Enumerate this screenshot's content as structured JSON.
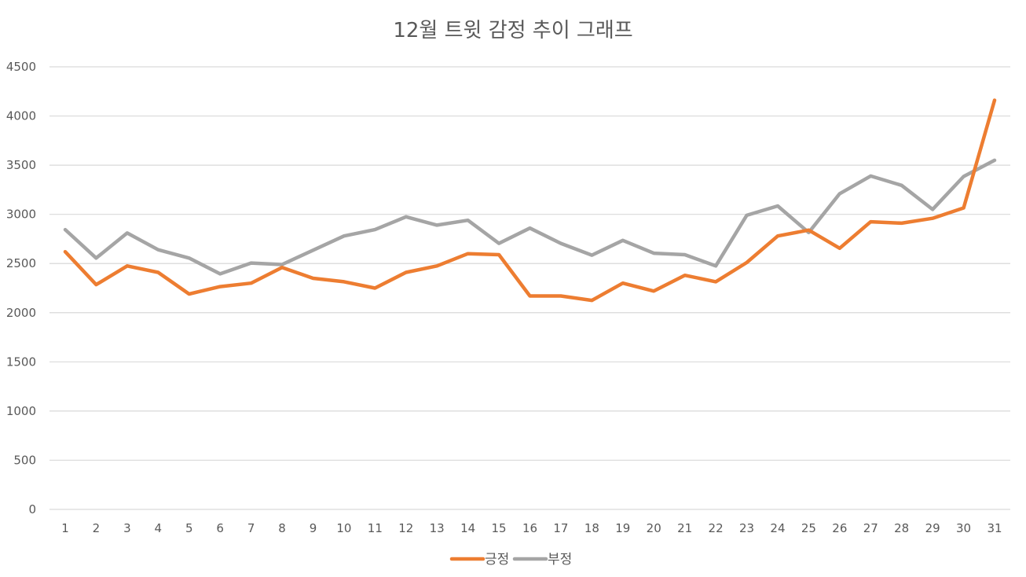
{
  "chart_data": {
    "type": "line",
    "title": "12월 트윗 감정 추이 그래프",
    "xlabel": "",
    "ylabel": "",
    "x": [
      "1",
      "2",
      "3",
      "4",
      "5",
      "6",
      "7",
      "8",
      "9",
      "10",
      "11",
      "12",
      "13",
      "14",
      "15",
      "16",
      "17",
      "18",
      "19",
      "20",
      "21",
      "22",
      "23",
      "24",
      "25",
      "26",
      "27",
      "28",
      "29",
      "30",
      "31"
    ],
    "ylim": [
      0,
      4500
    ],
    "yticks": [
      0,
      500,
      1000,
      1500,
      2000,
      2500,
      3000,
      3500,
      4000,
      4500
    ],
    "grid": true,
    "legend": "bottom",
    "series": [
      {
        "name": "긍정",
        "color": "#ED7D31",
        "values": [
          2620,
          2285,
          2475,
          2410,
          2190,
          2265,
          2300,
          2460,
          2350,
          2315,
          2250,
          2410,
          2475,
          2600,
          2590,
          2170,
          2170,
          2125,
          2300,
          2220,
          2380,
          2315,
          2510,
          2780,
          2840,
          2655,
          2925,
          2910,
          2960,
          3065,
          4160
        ]
      },
      {
        "name": "부정",
        "color": "#A5A5A5",
        "values": [
          2845,
          2555,
          2810,
          2640,
          2555,
          2395,
          2505,
          2490,
          2635,
          2780,
          2845,
          2975,
          2890,
          2940,
          2705,
          2860,
          2705,
          2585,
          2735,
          2605,
          2590,
          2475,
          2990,
          3085,
          2815,
          3210,
          3390,
          3295,
          3050,
          3385,
          3550
        ]
      }
    ]
  }
}
